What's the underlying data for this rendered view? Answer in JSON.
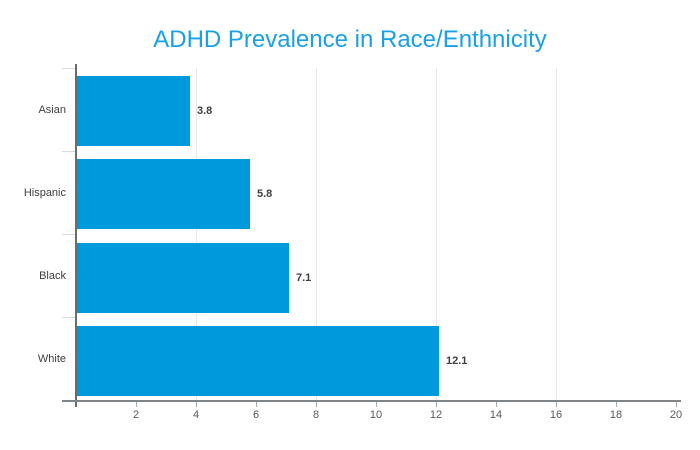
{
  "chart_data": {
    "type": "bar",
    "orientation": "horizontal",
    "title": "ADHD Prevalence in Race/Enthnicity",
    "categories": [
      "Asian",
      "Hispanic",
      "Black",
      "White"
    ],
    "values": [
      3.8,
      5.8,
      7.1,
      12.1
    ],
    "value_labels": [
      "3.8",
      "5.8",
      "7.1",
      "12.1"
    ],
    "xlabel": "",
    "ylabel": "",
    "xlim": [
      0,
      20
    ],
    "x_ticks": [
      "2",
      "4",
      "6",
      "8",
      "10",
      "12",
      "14",
      "16",
      "18",
      "20"
    ],
    "x_tick_values": [
      2,
      4,
      6,
      8,
      10,
      12,
      14,
      16,
      18,
      20
    ],
    "gridline_values": [
      4,
      8,
      12,
      16
    ],
    "grid": true,
    "legend": false,
    "colors": {
      "bar": "#0099dc",
      "title": "#1aa0e8",
      "gridline": "#e8e8e8",
      "x_axis_line": "#828588",
      "y_axis_line": "#6a6c6e",
      "x_tick_mark": "#a6abae",
      "y_tick_mark": "#d9dbdc",
      "tick_label": "#595a5c",
      "category_label": "#3f4042",
      "value_label": "#414143"
    }
  }
}
